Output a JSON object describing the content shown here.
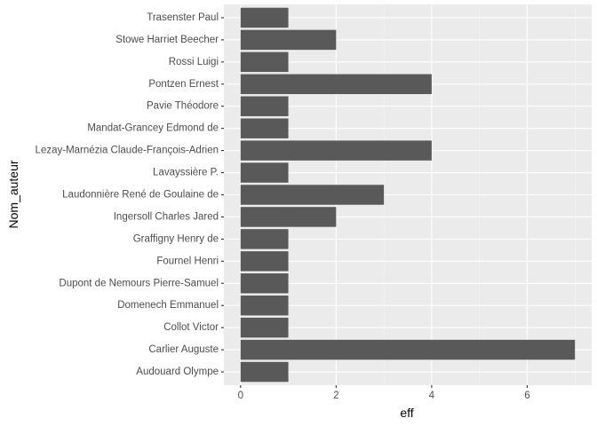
{
  "chart_data": {
    "type": "bar",
    "orientation": "horizontal",
    "title": "",
    "xlabel": "eff",
    "ylabel": "Nom_auteur",
    "xlim": [
      -0.35,
      7.35
    ],
    "x_ticks": [
      0,
      2,
      4,
      6
    ],
    "x_minor_ticks": [
      1,
      3,
      5,
      7
    ],
    "grid": true,
    "theme": "ggplot2 grey",
    "categories": [
      "Trasenster Paul",
      "Stowe Harriet Beecher",
      "Rossi Luigi",
      "Pontzen Ernest",
      "Pavie Théodore",
      "Mandat-Grancey Edmond de",
      "Lezay-Marnézia Claude-François-Adrien",
      "Lavayssière P.",
      "Laudonnière René de Goulaine de",
      "Ingersoll Charles Jared",
      "Graffigny Henry de",
      "Fournel Henri",
      "Dupont de Nemours Pierre-Samuel",
      "Domenech Emmanuel",
      "Collot Victor",
      "Carlier Auguste",
      "Audouard Olympe"
    ],
    "values": [
      1,
      2,
      1,
      4,
      1,
      1,
      4,
      1,
      3,
      2,
      1,
      1,
      1,
      1,
      1,
      7,
      1
    ]
  },
  "colors": {
    "bar": "#595959",
    "panel_background": "#ebebeb",
    "grid_major": "#ffffff",
    "grid_minor": "#f4f4f4",
    "tick_mark": "#333333",
    "tick_label": "#4d4d4d",
    "axis_title": "#000000"
  }
}
